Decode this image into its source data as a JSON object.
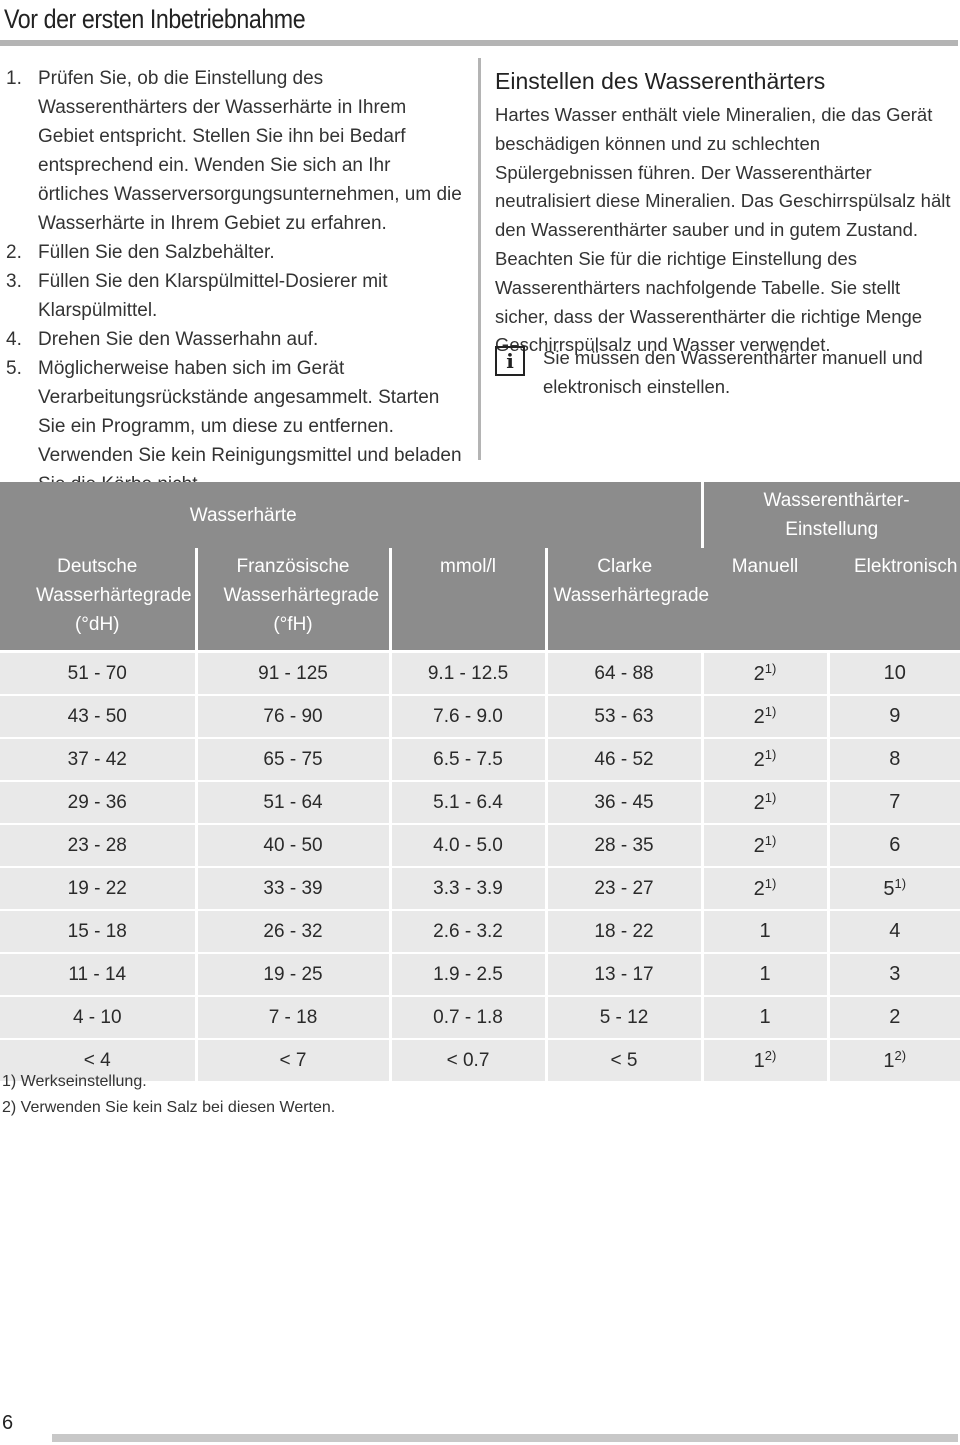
{
  "page": {
    "title": "Vor der ersten Inbetriebnahme",
    "page_number": "6"
  },
  "steps": [
    {
      "num": "1.",
      "text": "Prüfen Sie, ob die Einstellung des Wasserenthärters der Wasserhärte in Ihrem Gebiet entspricht. Stellen Sie ihn bei Bedarf entsprechend ein. Wenden Sie sich an Ihr örtliches Wasserversorgungsunternehmen, um die Wasserhärte in Ihrem Gebiet zu erfahren."
    },
    {
      "num": "2.",
      "text": "Füllen Sie den Salzbehälter."
    },
    {
      "num": "3.",
      "text": "Füllen Sie den Klarspülmittel-Dosierer mit Klarspülmittel."
    },
    {
      "num": "4.",
      "text": "Drehen Sie den Wasserhahn auf."
    },
    {
      "num": "5.",
      "text": "Möglicherweise haben sich im Gerät Verarbeitungsrückstände angesammelt. Starten Sie ein Programm, um diese zu entfernen. Verwenden Sie kein Reinigungsmittel und beladen Sie die Körbe nicht."
    }
  ],
  "section": {
    "title": "Einstellen des Wasserenthärters",
    "body": "Hartes Wasser enthält viele Mineralien, die das Gerät beschädigen können und zu schlechten Spülergebnissen führen. Der Wasserenthärter neutralisiert diese Mineralien. Das Geschirrspülsalz hält den Wasserenthärter sauber und in gutem Zustand. Beachten Sie für die richtige Einstellung des Wasserenthärters nachfolgende Tabelle. Sie stellt sicher, dass der Wasserenthärter die richtige Menge Geschirrspülsalz und Wasser verwendet.",
    "note_icon": "info-icon",
    "note": "Sie müssen den Wasserenthärter manuell und elektronisch einstellen."
  },
  "table": {
    "group_headers": {
      "hardness": "Wasserhärte",
      "setting": "Wasserenthärter-Einstellung"
    },
    "columns": [
      "Deutsche Wasserhärtegrade (°dH)",
      "Französische Wasserhärtegrade (°fH)",
      "mmol/l",
      "Clarke Wasserhärtegrade",
      "Manuell",
      "Elektronisch"
    ],
    "rows": [
      {
        "dh": "51 - 70",
        "fh": "91 - 125",
        "mmol": "9.1 - 12.5",
        "clarke": "64 - 88",
        "manual": "2",
        "manual_note": "1)",
        "electronic": "10",
        "electronic_note": ""
      },
      {
        "dh": "43 - 50",
        "fh": "76 - 90",
        "mmol": "7.6 - 9.0",
        "clarke": "53 - 63",
        "manual": "2",
        "manual_note": "1)",
        "electronic": "9",
        "electronic_note": ""
      },
      {
        "dh": "37 - 42",
        "fh": "65 - 75",
        "mmol": "6.5 - 7.5",
        "clarke": "46 - 52",
        "manual": "2",
        "manual_note": "1)",
        "electronic": "8",
        "electronic_note": ""
      },
      {
        "dh": "29 - 36",
        "fh": "51 - 64",
        "mmol": "5.1 - 6.4",
        "clarke": "36 - 45",
        "manual": "2",
        "manual_note": "1)",
        "electronic": "7",
        "electronic_note": ""
      },
      {
        "dh": "23 - 28",
        "fh": "40 - 50",
        "mmol": "4.0 - 5.0",
        "clarke": "28 - 35",
        "manual": "2",
        "manual_note": "1)",
        "electronic": "6",
        "electronic_note": ""
      },
      {
        "dh": "19 - 22",
        "fh": "33 - 39",
        "mmol": "3.3 - 3.9",
        "clarke": "23 - 27",
        "manual": "2",
        "manual_note": "1)",
        "electronic": "5",
        "electronic_note": "1)"
      },
      {
        "dh": "15 - 18",
        "fh": "26 - 32",
        "mmol": "2.6 - 3.2",
        "clarke": "18 - 22",
        "manual": "1",
        "manual_note": "",
        "electronic": "4",
        "electronic_note": ""
      },
      {
        "dh": "11 - 14",
        "fh": "19 - 25",
        "mmol": "1.9 - 2.5",
        "clarke": "13 - 17",
        "manual": "1",
        "manual_note": "",
        "electronic": "3",
        "electronic_note": ""
      },
      {
        "dh": "4 - 10",
        "fh": "7 - 18",
        "mmol": "0.7 - 1.8",
        "clarke": "5 - 12",
        "manual": "1",
        "manual_note": "",
        "electronic": "2",
        "electronic_note": ""
      },
      {
        "dh": "< 4",
        "fh": "< 7",
        "mmol": "< 0.7",
        "clarke": "< 5",
        "manual": "1",
        "manual_note": "2)",
        "electronic": "1",
        "electronic_note": "2)"
      }
    ]
  },
  "footnotes": [
    "1) Werkseinstellung.",
    "2) Verwenden Sie kein Salz bei diesen Werten."
  ]
}
